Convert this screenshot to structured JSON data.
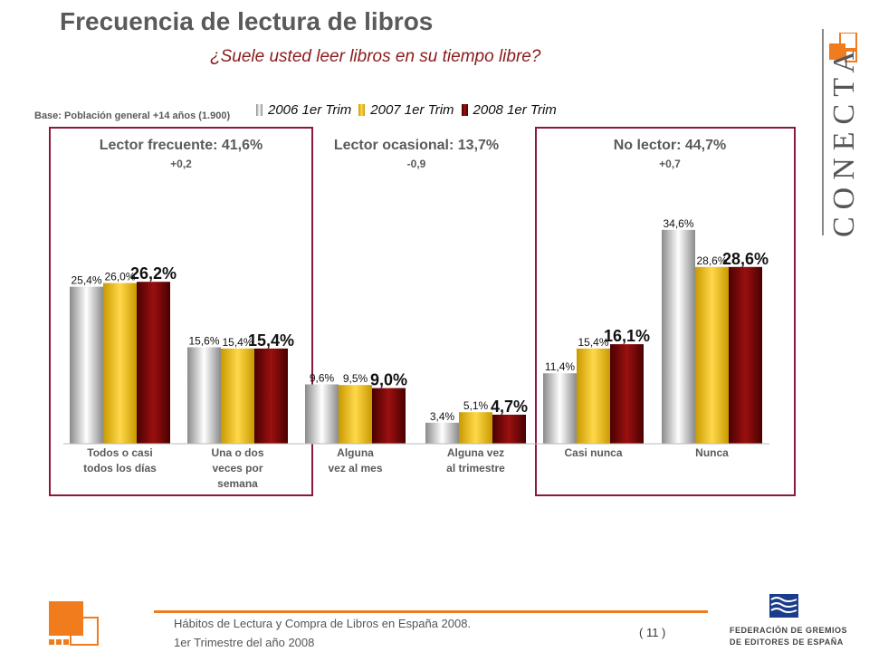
{
  "slide": {
    "title": "Frecuencia de lectura de libros",
    "subtitle": "¿Suele usted leer libros en su tiempo libre?",
    "base_note": "Base: Población general +14 años (1.900)"
  },
  "groups": [
    {
      "name": "Lector frecuente: 41,6%",
      "delta": "+0,2"
    },
    {
      "name": "Lector ocasional: 13,7%",
      "delta": "-0,9"
    },
    {
      "name": "No lector: 44,7%",
      "delta": "+0,7"
    }
  ],
  "chart_data": {
    "type": "bar",
    "categories": [
      "Todos o casi todos los días",
      "Una o dos veces por semana",
      "Alguna vez al mes",
      "Alguna vez al trimestre",
      "Casi nunca",
      "Nunca"
    ],
    "series": [
      {
        "name": "2006 1er Trim",
        "values": [
          25.4,
          15.6,
          9.6,
          3.4,
          11.4,
          34.6
        ],
        "labels": [
          "25,4%",
          "15,6%",
          "9,6%",
          "3,4%",
          "11,4%",
          "34,6%"
        ]
      },
      {
        "name": "2007 1er Trim",
        "values": [
          26.0,
          15.4,
          9.5,
          5.1,
          15.4,
          28.6
        ],
        "labels": [
          "26,0%",
          "15,4%",
          "9,5%",
          "5,1%",
          "15,4%",
          "28,6%"
        ]
      },
      {
        "name": "2008 1er Trim",
        "values": [
          26.2,
          15.4,
          9.0,
          4.7,
          16.1,
          28.6
        ],
        "labels": [
          "26,2%",
          "15,4%",
          "9,0%",
          "4,7%",
          "16,1%",
          "28,6%"
        ]
      }
    ],
    "colors": [
      "#b8b8b8",
      "#f2c200",
      "#7a0000"
    ],
    "ylim": [
      0,
      40
    ]
  },
  "footer": {
    "line1": "Hábitos de Lectura y Compra de Libros en España 2008.",
    "line2": "1er Trimestre del año 2008",
    "page": "( 11 )"
  },
  "brand": {
    "name": "CONECTA",
    "federation_line1": "FEDERACIÓN DE GREMIOS",
    "federation_line2": "DE EDITORES DE ESPAÑA"
  }
}
